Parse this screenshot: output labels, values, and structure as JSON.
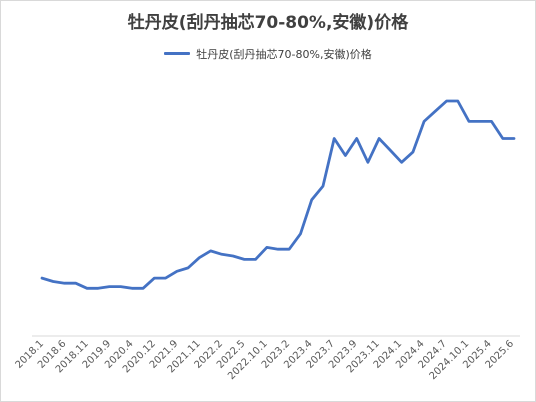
{
  "chart_data": {
    "type": "line",
    "title": "牡丹皮(刮丹抽芯70-80%,安徽)价格",
    "xlabel": "",
    "ylabel": "",
    "legend_position": "top",
    "grid": false,
    "color": "#4472c4",
    "series": [
      {
        "name": "牡丹皮(刮丹抽芯70-80%,安徽)价格",
        "values": [
          22,
          21,
          20.5,
          20.5,
          19,
          19,
          19.5,
          19.5,
          19,
          19,
          22,
          22,
          24,
          25,
          28,
          30,
          29,
          28.5,
          27.5,
          27.5,
          31,
          30.5,
          30.5,
          35,
          45,
          49,
          63,
          58,
          63,
          56,
          63,
          59.5,
          56,
          59,
          68,
          71,
          74,
          74,
          68,
          68,
          68,
          63,
          63
        ]
      }
    ],
    "x_ticks": [
      "2018.1",
      "2018.6",
      "2018.11",
      "2019.9",
      "2020.4",
      "2020.12",
      "2021.9",
      "2021.11",
      "2022.2",
      "2022.5",
      "2022.10.1",
      "2023.2",
      "2023.4",
      "2023.7",
      "2023.9",
      "2023.11",
      "2024.1",
      "2024.4",
      "2024.7",
      "2024.10.1",
      "2025.4",
      "2025.6"
    ]
  }
}
